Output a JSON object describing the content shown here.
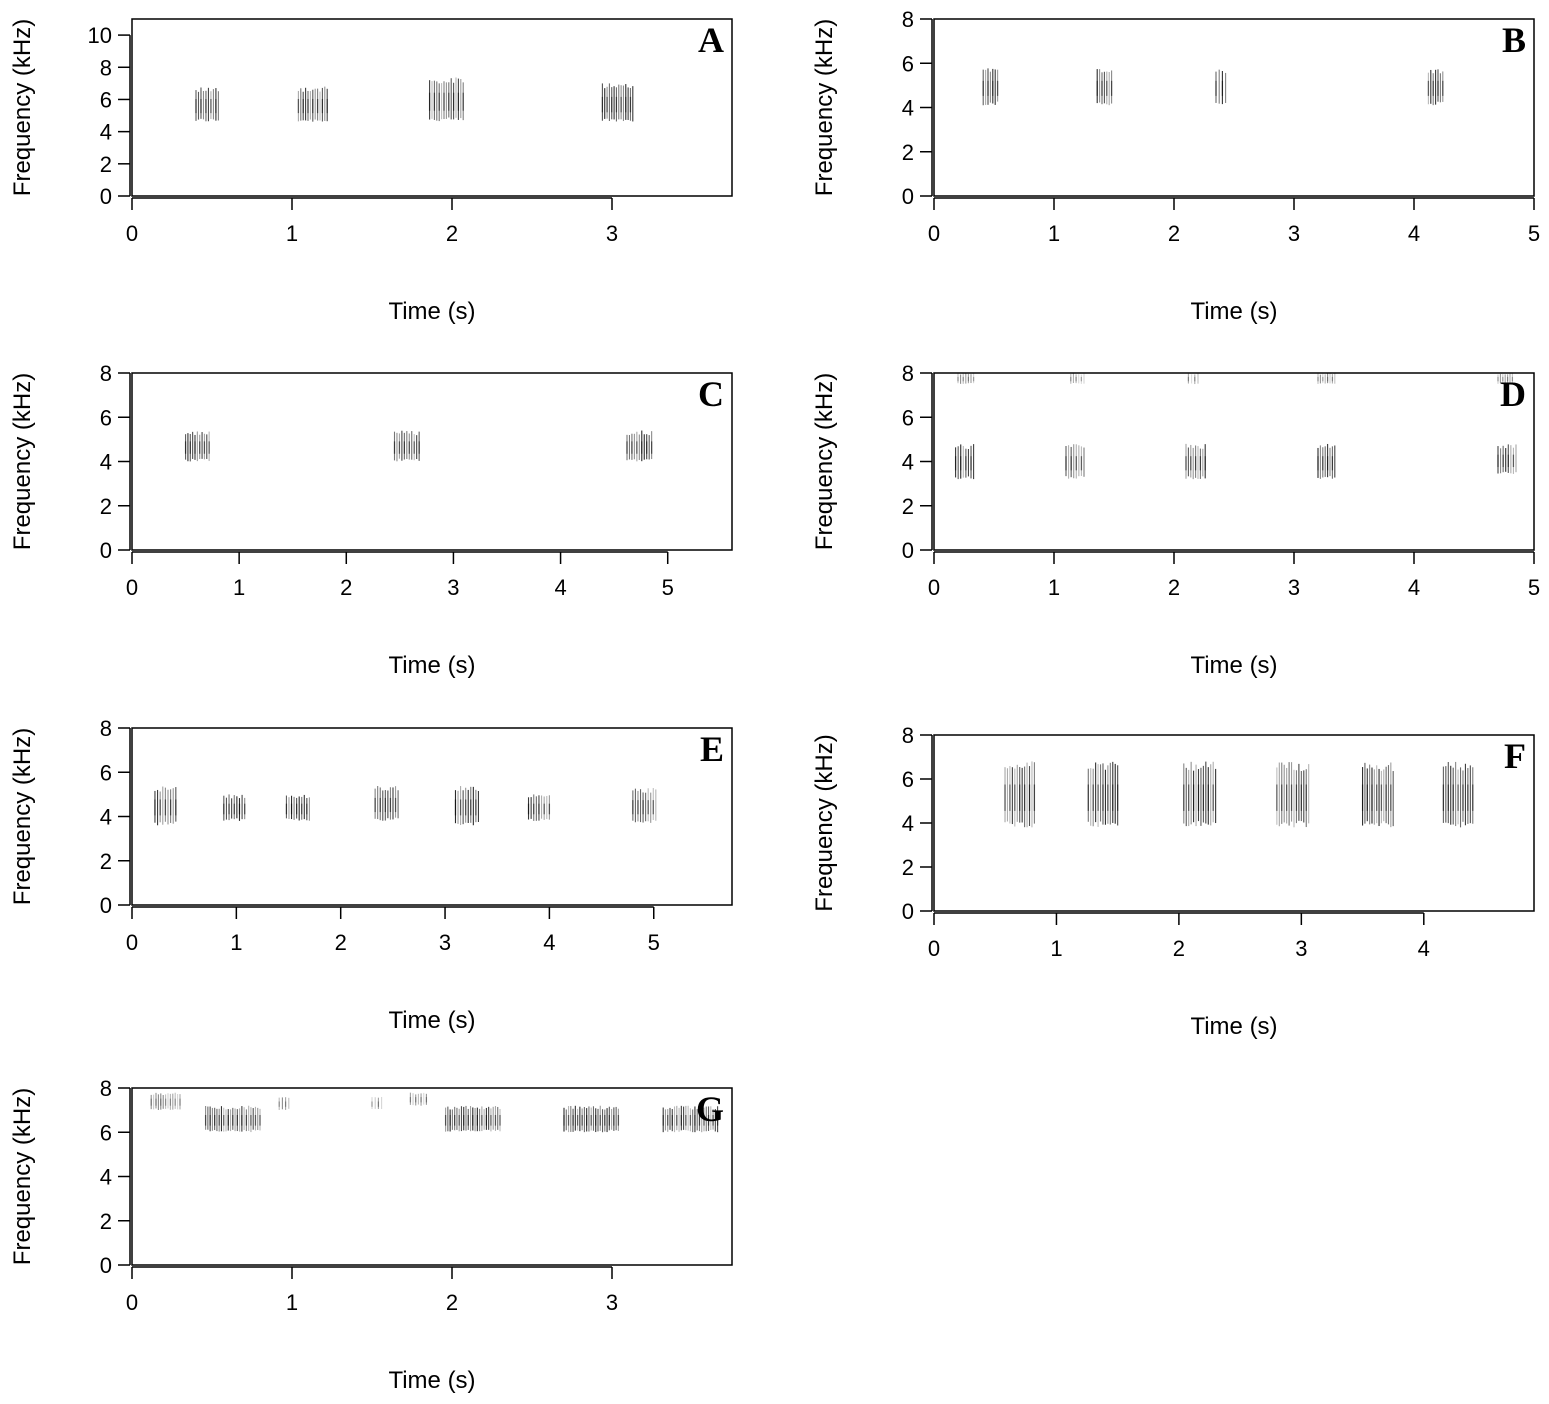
{
  "chart_data": [
    {
      "type": "spectrogram",
      "panel": "A",
      "xlabel": "Time (s)",
      "ylabel": "Frequency (kHz)",
      "xlim": [
        0,
        3.75
      ],
      "ylim": [
        0,
        11
      ],
      "xticks": [
        0,
        1,
        2,
        3
      ],
      "yticks": [
        0,
        2,
        4,
        6,
        8,
        10
      ],
      "grid": false,
      "calls": [
        {
          "start": 0.4,
          "end": 0.54,
          "fmin": 4.6,
          "fmax": 6.8
        },
        {
          "start": 1.04,
          "end": 1.22,
          "fmin": 4.6,
          "fmax": 6.8
        },
        {
          "start": 1.86,
          "end": 2.07,
          "fmin": 4.6,
          "fmax": 7.4
        },
        {
          "start": 2.94,
          "end": 3.13,
          "fmin": 4.6,
          "fmax": 7.0
        }
      ]
    },
    {
      "type": "spectrogram",
      "panel": "B",
      "xlabel": "Time (s)",
      "ylabel": "Frequency (kHz)",
      "xlim": [
        0,
        5
      ],
      "ylim": [
        0,
        8
      ],
      "xticks": [
        0,
        1,
        2,
        3,
        4,
        5
      ],
      "yticks": [
        0,
        2,
        4,
        6,
        8
      ],
      "grid": false,
      "calls": [
        {
          "start": 0.41,
          "end": 0.53,
          "fmin": 4.1,
          "fmax": 5.8
        },
        {
          "start": 1.36,
          "end": 1.48,
          "fmin": 4.1,
          "fmax": 5.8
        },
        {
          "start": 2.35,
          "end": 2.43,
          "fmin": 4.1,
          "fmax": 5.8
        },
        {
          "start": 4.12,
          "end": 4.24,
          "fmin": 4.1,
          "fmax": 5.8
        }
      ]
    },
    {
      "type": "spectrogram",
      "panel": "C",
      "xlabel": "Time (s)",
      "ylabel": "Frequency (kHz)",
      "xlim": [
        0,
        5.6
      ],
      "ylim": [
        0,
        8
      ],
      "xticks": [
        0,
        1,
        2,
        3,
        4,
        5
      ],
      "yticks": [
        0,
        2,
        4,
        6,
        8
      ],
      "grid": false,
      "calls": [
        {
          "start": 0.5,
          "end": 0.72,
          "fmin": 4.0,
          "fmax": 5.4
        },
        {
          "start": 2.45,
          "end": 2.68,
          "fmin": 4.0,
          "fmax": 5.4
        },
        {
          "start": 4.62,
          "end": 4.85,
          "fmin": 4.0,
          "fmax": 5.4
        }
      ]
    },
    {
      "type": "spectrogram",
      "panel": "D",
      "xlabel": "Time (s)",
      "ylabel": "Frequency (kHz)",
      "xlim": [
        0,
        5
      ],
      "ylim": [
        0,
        8
      ],
      "xticks": [
        0,
        1,
        2,
        3,
        4,
        5
      ],
      "yticks": [
        0,
        2,
        4,
        6,
        8
      ],
      "grid": false,
      "calls": [
        {
          "start": 0.18,
          "end": 0.33,
          "fmin": 3.2,
          "fmax": 4.8
        },
        {
          "start": 1.1,
          "end": 1.25,
          "fmin": 3.2,
          "fmax": 4.8
        },
        {
          "start": 2.1,
          "end": 2.26,
          "fmin": 3.2,
          "fmax": 4.8
        },
        {
          "start": 3.2,
          "end": 3.34,
          "fmin": 3.2,
          "fmax": 4.8
        },
        {
          "start": 4.7,
          "end": 4.85,
          "fmin": 3.4,
          "fmax": 4.8
        }
      ],
      "upper_calls": [
        {
          "start": 0.2,
          "end": 0.33,
          "fmin": 7.5,
          "fmax": 8.0
        },
        {
          "start": 1.14,
          "end": 1.25,
          "fmin": 7.5,
          "fmax": 8.0
        },
        {
          "start": 2.12,
          "end": 2.2,
          "fmin": 7.5,
          "fmax": 8.0
        },
        {
          "start": 3.2,
          "end": 3.34,
          "fmin": 7.5,
          "fmax": 8.0
        },
        {
          "start": 4.7,
          "end": 4.82,
          "fmin": 7.5,
          "fmax": 8.0
        }
      ]
    },
    {
      "type": "spectrogram",
      "panel": "E",
      "xlabel": "Time (s)",
      "ylabel": "Frequency (kHz)",
      "xlim": [
        0,
        5.75
      ],
      "ylim": [
        0,
        8
      ],
      "xticks": [
        0,
        1,
        2,
        3,
        4,
        5
      ],
      "yticks": [
        0,
        2,
        4,
        6,
        8
      ],
      "grid": false,
      "calls": [
        {
          "start": 0.22,
          "end": 0.42,
          "fmin": 3.6,
          "fmax": 5.4
        },
        {
          "start": 0.88,
          "end": 1.08,
          "fmin": 3.8,
          "fmax": 5.0
        },
        {
          "start": 1.48,
          "end": 1.7,
          "fmin": 3.8,
          "fmax": 5.0
        },
        {
          "start": 2.33,
          "end": 2.55,
          "fmin": 3.8,
          "fmax": 5.4
        },
        {
          "start": 3.1,
          "end": 3.32,
          "fmin": 3.6,
          "fmax": 5.4
        },
        {
          "start": 3.8,
          "end": 4.0,
          "fmin": 3.8,
          "fmax": 5.0
        },
        {
          "start": 4.8,
          "end": 5.02,
          "fmin": 3.7,
          "fmax": 5.3
        }
      ]
    },
    {
      "type": "spectrogram",
      "panel": "F",
      "xlabel": "Time (s)",
      "ylabel": "Frequency (kHz)",
      "xlim": [
        0,
        4.9
      ],
      "ylim": [
        0,
        8
      ],
      "xticks": [
        0,
        1,
        2,
        3,
        4
      ],
      "yticks": [
        0,
        2,
        4,
        6,
        8
      ],
      "grid": false,
      "calls": [
        {
          "start": 0.58,
          "end": 0.82,
          "fmin": 3.8,
          "fmax": 6.8
        },
        {
          "start": 1.26,
          "end": 1.5,
          "fmin": 3.8,
          "fmax": 6.8
        },
        {
          "start": 2.04,
          "end": 2.3,
          "fmin": 3.8,
          "fmax": 6.8
        },
        {
          "start": 2.8,
          "end": 3.06,
          "fmin": 3.8,
          "fmax": 6.8
        },
        {
          "start": 3.5,
          "end": 3.75,
          "fmin": 3.8,
          "fmax": 6.8
        },
        {
          "start": 4.16,
          "end": 4.4,
          "fmin": 3.8,
          "fmax": 6.8
        }
      ]
    },
    {
      "type": "spectrogram",
      "panel": "G",
      "xlabel": "Time (s)",
      "ylabel": "Frequency (kHz)",
      "xlim": [
        0,
        3.75
      ],
      "ylim": [
        0,
        8
      ],
      "xticks": [
        0,
        1,
        2,
        3
      ],
      "yticks": [
        0,
        2,
        4,
        6,
        8
      ],
      "grid": false,
      "calls": [
        {
          "start": 0.46,
          "end": 0.8,
          "fmin": 6.0,
          "fmax": 7.2
        },
        {
          "start": 1.96,
          "end": 2.3,
          "fmin": 6.0,
          "fmax": 7.2
        },
        {
          "start": 2.7,
          "end": 3.04,
          "fmin": 6.0,
          "fmax": 7.2
        },
        {
          "start": 3.32,
          "end": 3.66,
          "fmin": 6.0,
          "fmax": 7.2
        }
      ],
      "upper_calls": [
        {
          "start": 0.12,
          "end": 0.3,
          "fmin": 7.0,
          "fmax": 7.8
        },
        {
          "start": 0.92,
          "end": 0.98,
          "fmin": 7.0,
          "fmax": 7.6
        },
        {
          "start": 1.5,
          "end": 1.56,
          "fmin": 7.0,
          "fmax": 7.6
        },
        {
          "start": 1.74,
          "end": 1.84,
          "fmin": 7.2,
          "fmax": 7.8
        }
      ]
    }
  ]
}
